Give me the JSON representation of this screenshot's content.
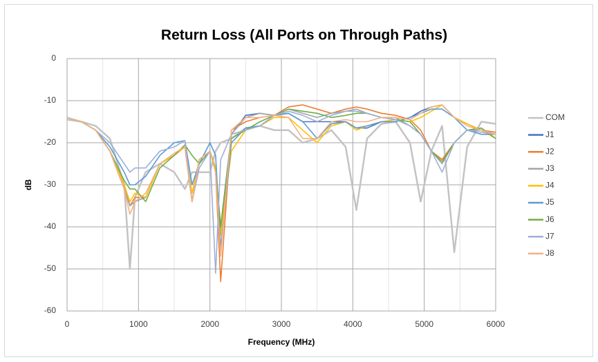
{
  "chart_data": {
    "type": "line",
    "title": "Return Loss (All Ports on Through Paths)",
    "x_label": "Frequency (MHz)",
    "y_label": "dB",
    "xlim": [
      0,
      6000
    ],
    "ylim": [
      -60,
      0
    ],
    "xticks": [
      0,
      1000,
      2000,
      3000,
      4000,
      5000,
      6000
    ],
    "xminorticks": [
      500,
      1500,
      2500,
      3500,
      4500,
      5500
    ],
    "yticks": [
      -60,
      -50,
      -40,
      -30,
      -20,
      -10,
      0
    ],
    "grid": true,
    "legend": "right",
    "x": [
      0,
      200,
      400,
      600,
      800,
      880,
      950,
      1100,
      1300,
      1500,
      1650,
      1750,
      1850,
      2000,
      2080,
      2150,
      2300,
      2500,
      2700,
      2900,
      3100,
      3300,
      3500,
      3700,
      3900,
      4050,
      4200,
      4400,
      4600,
      4800,
      4950,
      5100,
      5250,
      5420,
      5600,
      5800,
      6000
    ],
    "series": [
      {
        "name": "COM",
        "color": "#c3c3c3",
        "values": [
          -14.5,
          -15,
          -16,
          -19,
          -30,
          -50,
          -33,
          -27,
          -25,
          -27,
          -31,
          -27,
          -27,
          -27,
          -22,
          -20,
          -19,
          -16.5,
          -16,
          -17,
          -17,
          -20,
          -19,
          -17,
          -21,
          -36,
          -19,
          -15.5,
          -15,
          -20,
          -34,
          -22,
          -16,
          -46,
          -21,
          -15,
          -15.5
        ]
      },
      {
        "name": "J1",
        "color": "#4472c4",
        "values": [
          -14,
          -15,
          -17,
          -22,
          -30,
          -35,
          -34,
          -33,
          -25,
          -23,
          -21,
          -34,
          -24,
          -22,
          -26,
          -40,
          -18,
          -13.5,
          -13,
          -13.5,
          -13,
          -15,
          -15,
          -15,
          -15,
          -16.5,
          -16.5,
          -15,
          -15,
          -14,
          -12.5,
          -11.5,
          -11,
          -14,
          -15.5,
          -17,
          -18
        ]
      },
      {
        "name": "J2",
        "color": "#ed7d31",
        "values": [
          -14,
          -15,
          -17,
          -22,
          -31,
          -35,
          -33,
          -33,
          -25,
          -23,
          -21,
          -34,
          -24,
          -22,
          -27,
          -53,
          -17,
          -15,
          -14,
          -13.5,
          -11.5,
          -11,
          -12,
          -13,
          -12,
          -11.5,
          -12,
          -13,
          -13.5,
          -14.5,
          -17,
          -22,
          -24,
          -20,
          -17,
          -17,
          -17.5
        ]
      },
      {
        "name": "J3",
        "color": "#a5a5a5",
        "values": [
          -14,
          -15,
          -17,
          -22,
          -30,
          -35,
          -34,
          -33,
          -25,
          -23,
          -21,
          -34,
          -24,
          -22,
          -26,
          -41,
          -18,
          -14,
          -13,
          -13.5,
          -12,
          -13,
          -14,
          -13,
          -12.5,
          -12,
          -13,
          -14,
          -14,
          -16,
          -18,
          -22,
          -25,
          -20,
          -17,
          -17,
          -18
        ]
      },
      {
        "name": "J4",
        "color": "#ffc000",
        "values": [
          -14,
          -15,
          -17,
          -22,
          -30,
          -34,
          -32,
          -33,
          -25,
          -23,
          -21,
          -32,
          -24,
          -22,
          -26,
          -42,
          -22,
          -17,
          -16,
          -14,
          -14,
          -17,
          -20,
          -16,
          -15,
          -17,
          -16,
          -15,
          -14.5,
          -15,
          -14,
          -12.5,
          -11,
          -14,
          -15.5,
          -17,
          -19
        ]
      },
      {
        "name": "J5",
        "color": "#5b9bd5",
        "values": [
          -14,
          -15,
          -17,
          -21,
          -27,
          -30,
          -30,
          -28,
          -23,
          -20,
          -19.5,
          -30,
          -25,
          -20,
          -23,
          -45,
          -20,
          -16.5,
          -16,
          -13.5,
          -13,
          -15,
          -19,
          -15.5,
          -15,
          -16.5,
          -16,
          -15,
          -15,
          -14,
          -13,
          -12,
          -12,
          -14,
          -17,
          -18,
          -18
        ]
      },
      {
        "name": "J6",
        "color": "#70ad47",
        "values": [
          -14,
          -15,
          -17,
          -22,
          -29,
          -31,
          -31,
          -34,
          -26,
          -23,
          -20.5,
          -23,
          -25,
          -22,
          -27,
          -40,
          -19,
          -17,
          -15,
          -13.5,
          -12,
          -12.5,
          -13,
          -14,
          -13.5,
          -13,
          -13,
          -14,
          -14.5,
          -15,
          -18,
          -22,
          -24.5,
          -20,
          -17,
          -16.5,
          -19
        ]
      },
      {
        "name": "J7",
        "color": "#9dafd8",
        "values": [
          -14,
          -15,
          -17,
          -20,
          -25,
          -27,
          -26,
          -26,
          -22,
          -21,
          -19.5,
          -34,
          -26,
          -22,
          -51,
          -24,
          -18,
          -17,
          -16,
          -13.5,
          -12.5,
          -13.5,
          -15,
          -13.5,
          -12.5,
          -12.5,
          -13,
          -14,
          -14.5,
          -16,
          -18,
          -22,
          -27,
          -20,
          -17,
          -17.5,
          -18
        ]
      },
      {
        "name": "J8",
        "color": "#f4b183",
        "values": [
          -14,
          -15,
          -17,
          -22,
          -31,
          -37,
          -34,
          -32,
          -25,
          -22.5,
          -21,
          -34,
          -24,
          -22,
          -27,
          -47,
          -17,
          -14,
          -14,
          -13.5,
          -14,
          -19,
          -19,
          -15,
          -14.5,
          -15,
          -15,
          -14,
          -14,
          -14.5,
          -13,
          -11.5,
          -11,
          -14,
          -16,
          -17,
          -18
        ]
      }
    ]
  }
}
